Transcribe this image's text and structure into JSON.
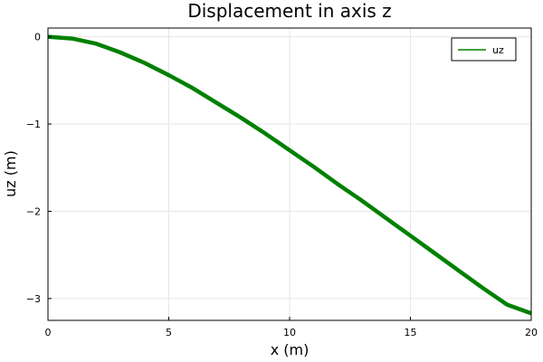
{
  "chart_data": {
    "type": "line",
    "title": "Displacement in axis z",
    "xlabel": "x (m)",
    "ylabel": "uz (m)",
    "xlim": [
      0,
      20
    ],
    "ylim": [
      -3.25,
      0.1
    ],
    "xticks": [
      0,
      5,
      10,
      15,
      20
    ],
    "yticks": [
      0,
      -1,
      -2,
      -3
    ],
    "xtick_labels": [
      "0",
      "5",
      "10",
      "15",
      "20"
    ],
    "ytick_labels": [
      "0",
      "−1",
      "−2",
      "−3"
    ],
    "grid": true,
    "legend": {
      "position": "top-right",
      "entries": [
        "uz"
      ]
    },
    "series": [
      {
        "name": "uz",
        "color": "#008000",
        "x": [
          0,
          1,
          2,
          3,
          4,
          5,
          6,
          7,
          8,
          9,
          10,
          11,
          12,
          13,
          14,
          15,
          16,
          17,
          18,
          19,
          20
        ],
        "y": [
          0,
          -0.02,
          -0.08,
          -0.18,
          -0.3,
          -0.44,
          -0.59,
          -0.76,
          -0.93,
          -1.11,
          -1.3,
          -1.49,
          -1.69,
          -1.88,
          -2.08,
          -2.28,
          -2.48,
          -2.68,
          -2.88,
          -3.07,
          -3.17
        ]
      }
    ]
  }
}
